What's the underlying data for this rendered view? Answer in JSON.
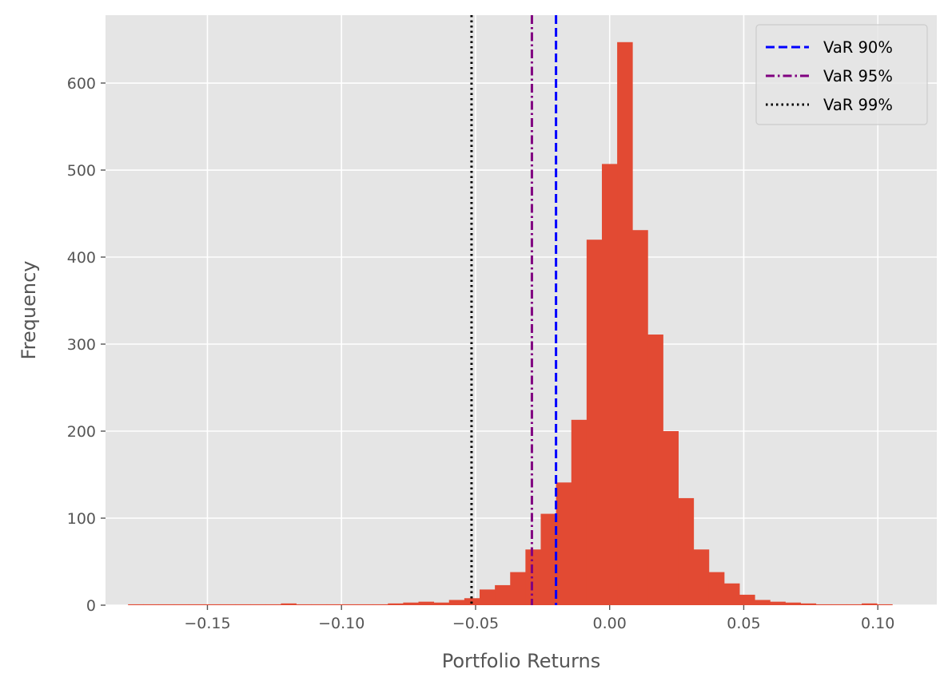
{
  "chart_data": {
    "type": "histogram",
    "title": "",
    "xlabel": "Portfolio Returns",
    "ylabel": "Frequency",
    "xlim": [
      -0.188,
      0.122
    ],
    "ylim": [
      0,
      678
    ],
    "xticks": [
      -0.15,
      -0.1,
      -0.05,
      0.0,
      0.05,
      0.1
    ],
    "xtick_labels": [
      "−0.15",
      "−0.10",
      "−0.05",
      "0.00",
      "0.05",
      "0.10"
    ],
    "yticks": [
      0,
      100,
      200,
      300,
      400,
      500,
      600
    ],
    "ytick_labels": [
      "0",
      "100",
      "200",
      "300",
      "400",
      "500",
      "600"
    ],
    "grid": true,
    "background": "#e5e5e5",
    "bar_color": "#e24a33",
    "bin_width": 0.0057,
    "bins": [
      {
        "x0": -0.1796,
        "count": 1
      },
      {
        "x0": -0.1739,
        "count": 1
      },
      {
        "x0": -0.1682,
        "count": 1
      },
      {
        "x0": -0.1625,
        "count": 1
      },
      {
        "x0": -0.1568,
        "count": 1
      },
      {
        "x0": -0.1511,
        "count": 1
      },
      {
        "x0": -0.1454,
        "count": 1
      },
      {
        "x0": -0.1397,
        "count": 1
      },
      {
        "x0": -0.134,
        "count": 1
      },
      {
        "x0": -0.1283,
        "count": 1
      },
      {
        "x0": -0.1226,
        "count": 2
      },
      {
        "x0": -0.1169,
        "count": 1
      },
      {
        "x0": -0.1112,
        "count": 1
      },
      {
        "x0": -0.1055,
        "count": 1
      },
      {
        "x0": -0.0998,
        "count": 1
      },
      {
        "x0": -0.0941,
        "count": 1
      },
      {
        "x0": -0.0884,
        "count": 1
      },
      {
        "x0": -0.0827,
        "count": 2
      },
      {
        "x0": -0.077,
        "count": 3
      },
      {
        "x0": -0.0713,
        "count": 4
      },
      {
        "x0": -0.0656,
        "count": 3
      },
      {
        "x0": -0.0599,
        "count": 6
      },
      {
        "x0": -0.0542,
        "count": 8
      },
      {
        "x0": -0.0485,
        "count": 18
      },
      {
        "x0": -0.0428,
        "count": 23
      },
      {
        "x0": -0.0371,
        "count": 38
      },
      {
        "x0": -0.0314,
        "count": 64
      },
      {
        "x0": -0.0257,
        "count": 105
      },
      {
        "x0": -0.02,
        "count": 141
      },
      {
        "x0": -0.0143,
        "count": 213
      },
      {
        "x0": -0.0086,
        "count": 420
      },
      {
        "x0": -0.0029,
        "count": 507
      },
      {
        "x0": 0.0028,
        "count": 647
      },
      {
        "x0": 0.0085,
        "count": 431
      },
      {
        "x0": 0.0142,
        "count": 311
      },
      {
        "x0": 0.0199,
        "count": 200
      },
      {
        "x0": 0.0256,
        "count": 123
      },
      {
        "x0": 0.0313,
        "count": 64
      },
      {
        "x0": 0.037,
        "count": 38
      },
      {
        "x0": 0.0427,
        "count": 25
      },
      {
        "x0": 0.0484,
        "count": 12
      },
      {
        "x0": 0.0541,
        "count": 6
      },
      {
        "x0": 0.0598,
        "count": 4
      },
      {
        "x0": 0.0655,
        "count": 3
      },
      {
        "x0": 0.0712,
        "count": 2
      },
      {
        "x0": 0.0769,
        "count": 1
      },
      {
        "x0": 0.0826,
        "count": 1
      },
      {
        "x0": 0.0883,
        "count": 1
      },
      {
        "x0": 0.094,
        "count": 2
      },
      {
        "x0": 0.0997,
        "count": 1
      }
    ],
    "var_lines": [
      {
        "name": "VaR 90%",
        "x": -0.02,
        "color": "#0000ff",
        "style": "dashed"
      },
      {
        "name": "VaR 95%",
        "x": -0.029,
        "color": "#800080",
        "style": "dashdot"
      },
      {
        "name": "VaR 99%",
        "x": -0.0515,
        "color": "#000000",
        "style": "dotted"
      }
    ],
    "legend_position": "top-right"
  }
}
